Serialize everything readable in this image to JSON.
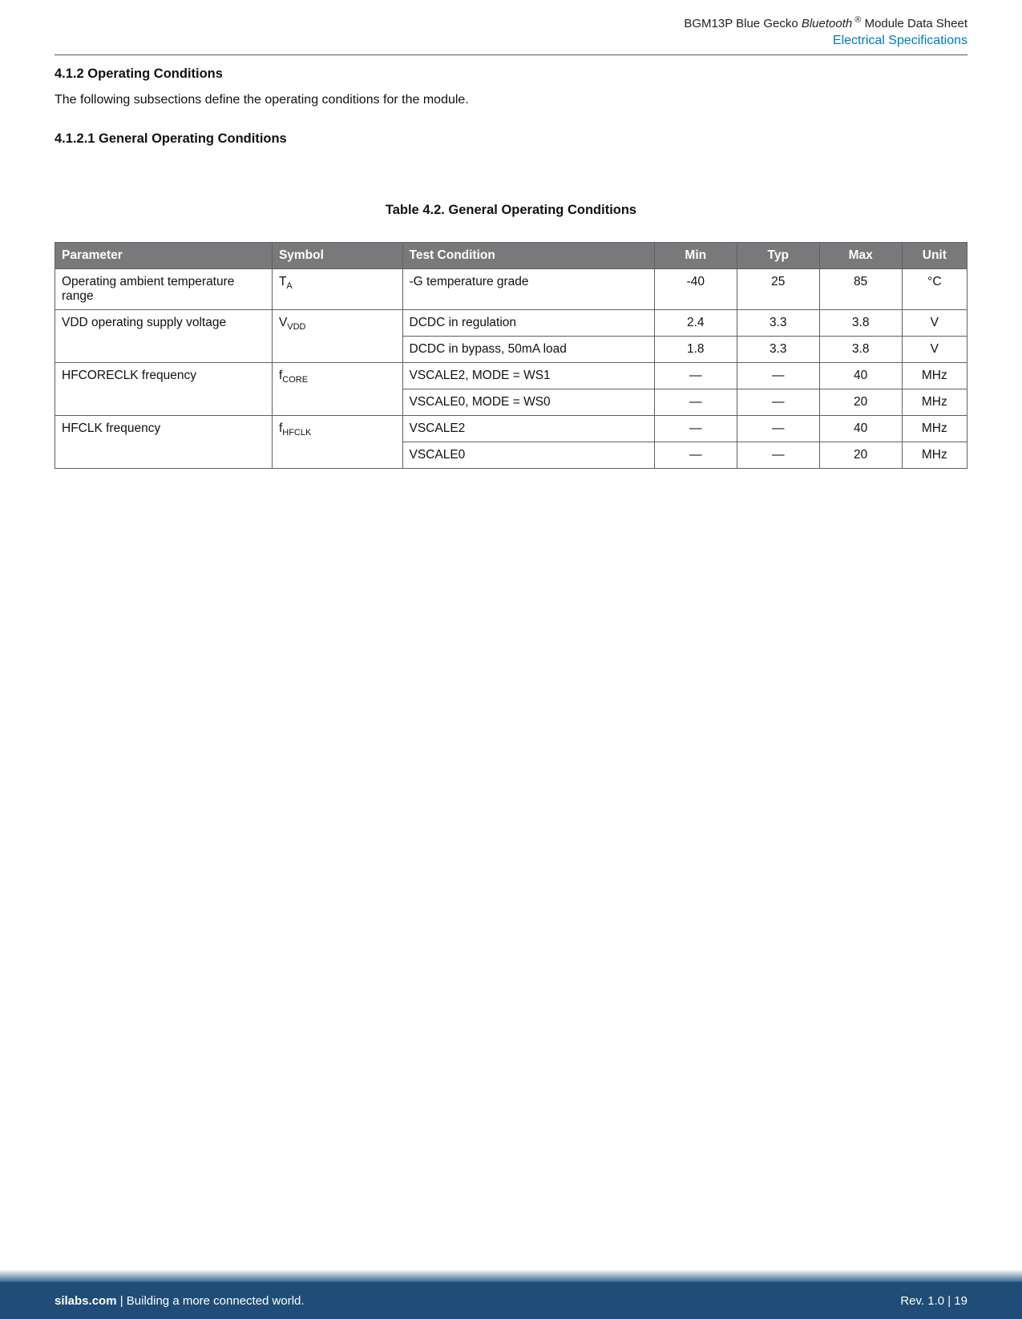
{
  "header": {
    "title_prefix": "BGM13P Blue Gecko ",
    "title_italic": "Bluetooth",
    "title_reg": " ®",
    "title_suffix": " Module Data Sheet",
    "subtitle": "Electrical Specifications"
  },
  "section": {
    "num_title": "4.1.2  Operating Conditions",
    "intro": "The following subsections define the operating conditions for the module.",
    "sub_num_title": "4.1.2.1  General Operating Conditions"
  },
  "table": {
    "caption": "Table 4.2.  General Operating Conditions",
    "columns": {
      "parameter": "Parameter",
      "symbol": "Symbol",
      "test_condition": "Test Condition",
      "min": "Min",
      "typ": "Typ",
      "max": "Max",
      "unit": "Unit"
    },
    "col_widths": {
      "parameter": "250px",
      "symbol": "150px",
      "test_condition": "290px",
      "min": "95px",
      "typ": "95px",
      "max": "95px",
      "unit": "75px"
    },
    "rows": [
      {
        "parameter": "Operating ambient tempera­ture range",
        "symbol_main": "T",
        "symbol_sub": "A",
        "test_condition": "-G temperature grade",
        "min": "-40",
        "typ": "25",
        "max": "85",
        "unit": "°C",
        "param_rowspan": 1,
        "symbol_rowspan": 1
      },
      {
        "parameter": "VDD operating supply volt­age",
        "symbol_main": "V",
        "symbol_sub": "VDD",
        "test_condition": "DCDC in regulation",
        "min": "2.4",
        "typ": "3.3",
        "max": "3.8",
        "unit": "V",
        "param_rowspan": 2,
        "symbol_rowspan": 2
      },
      {
        "test_condition": "DCDC in bypass, 50mA load",
        "min": "1.8",
        "typ": "3.3",
        "max": "3.8",
        "unit": "V"
      },
      {
        "parameter": "HFCORECLK frequency",
        "symbol_main": "f",
        "symbol_sub": "CORE",
        "test_condition": "VSCALE2, MODE = WS1",
        "min": "—",
        "typ": "—",
        "max": "40",
        "unit": "MHz",
        "param_rowspan": 2,
        "symbol_rowspan": 2
      },
      {
        "test_condition": "VSCALE0, MODE = WS0",
        "min": "—",
        "typ": "—",
        "max": "20",
        "unit": "MHz"
      },
      {
        "parameter": "HFCLK frequency",
        "symbol_main": "f",
        "symbol_sub": "HFCLK",
        "test_condition": "VSCALE2",
        "min": "—",
        "typ": "—",
        "max": "40",
        "unit": "MHz",
        "param_rowspan": 2,
        "symbol_rowspan": 2
      },
      {
        "test_condition": "VSCALE0",
        "min": "—",
        "typ": "—",
        "max": "20",
        "unit": "MHz"
      }
    ]
  },
  "footer": {
    "site": "silabs.com",
    "tagline": " | Building a more connected world.",
    "rev": "Rev. 1.0  |  19"
  },
  "colors": {
    "header_rule": "#555555",
    "subtitle": "#0079c1",
    "table_header_bg": "#79797b",
    "table_header_fg": "#ffffff",
    "table_border": "#606062",
    "footer_bg": "#1f4d77",
    "footer_fade_top": "#ffffff",
    "footer_fade_bottom": "#37648c",
    "text": "#111111"
  }
}
